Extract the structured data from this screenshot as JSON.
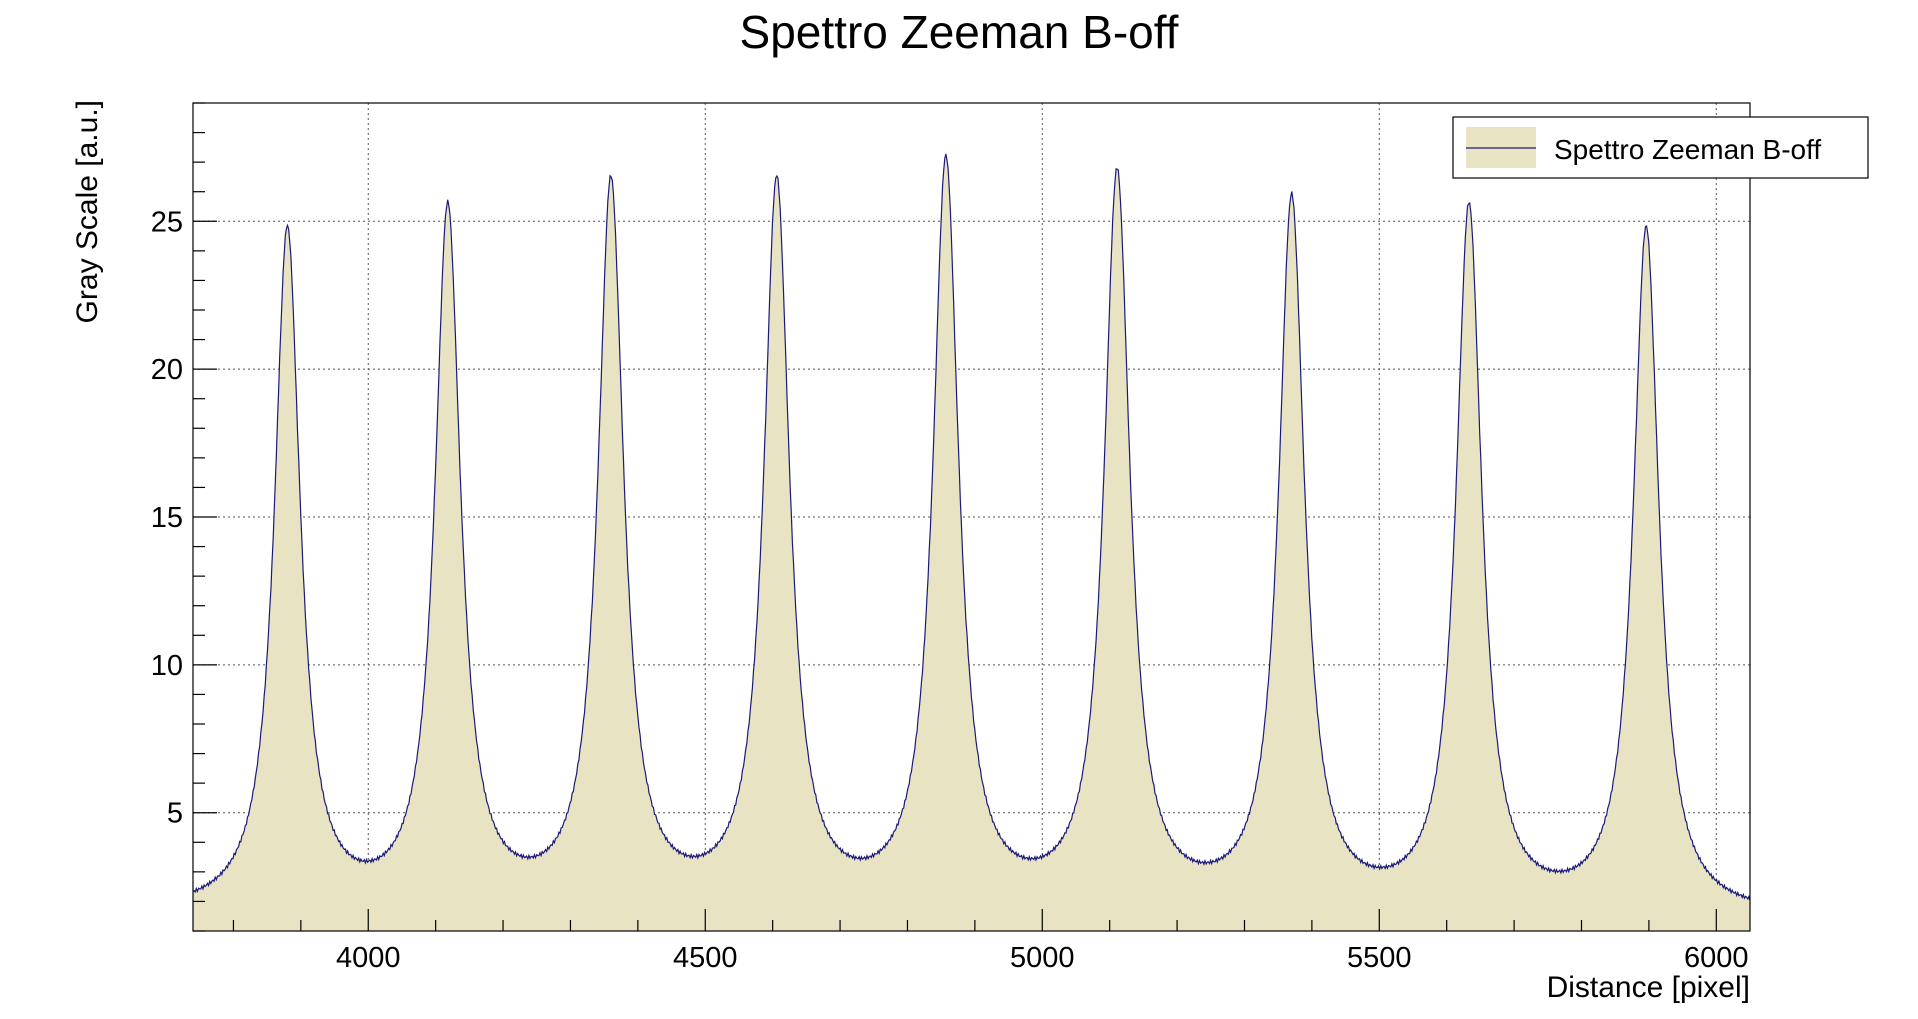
{
  "chart_data": {
    "type": "area",
    "title": "Spettro Zeeman B-off",
    "xlabel": "Distance [pixel]",
    "ylabel": "Gray Scale [a.u.]",
    "xlim": [
      3740,
      6050
    ],
    "ylim": [
      1.0,
      29.0
    ],
    "x_ticks": [
      4000,
      4500,
      5000,
      5500,
      6000
    ],
    "y_ticks": [
      5,
      10,
      15,
      20,
      25
    ],
    "grid": true,
    "legend_position": "top-right",
    "colors": {
      "fill": "#e8e4c3",
      "line": "#1a1a7a",
      "frame": "#000000"
    },
    "series": [
      {
        "name": "Spettro Zeeman B-off",
        "baseline_start": 1.75,
        "baseline_end": 1.55,
        "peaks": [
          {
            "x": 3880,
            "y": 24.6
          },
          {
            "x": 4118,
            "y": 25.2
          },
          {
            "x": 4360,
            "y": 26.0
          },
          {
            "x": 4606,
            "y": 26.0
          },
          {
            "x": 4857,
            "y": 26.7
          },
          {
            "x": 5111,
            "y": 26.3
          },
          {
            "x": 5370,
            "y": 25.5
          },
          {
            "x": 5633,
            "y": 25.3
          },
          {
            "x": 5896,
            "y": 24.7
          }
        ],
        "troughs": [
          {
            "x": 3740,
            "y": 1.75
          },
          {
            "x": 3999,
            "y": 1.65
          },
          {
            "x": 4240,
            "y": 1.75
          },
          {
            "x": 4483,
            "y": 1.8
          },
          {
            "x": 4731,
            "y": 1.75
          },
          {
            "x": 4984,
            "y": 1.8
          },
          {
            "x": 5241,
            "y": 1.75
          },
          {
            "x": 5501,
            "y": 1.65
          },
          {
            "x": 5765,
            "y": 1.6
          },
          {
            "x": 6050,
            "y": 1.55
          }
        ]
      }
    ]
  }
}
